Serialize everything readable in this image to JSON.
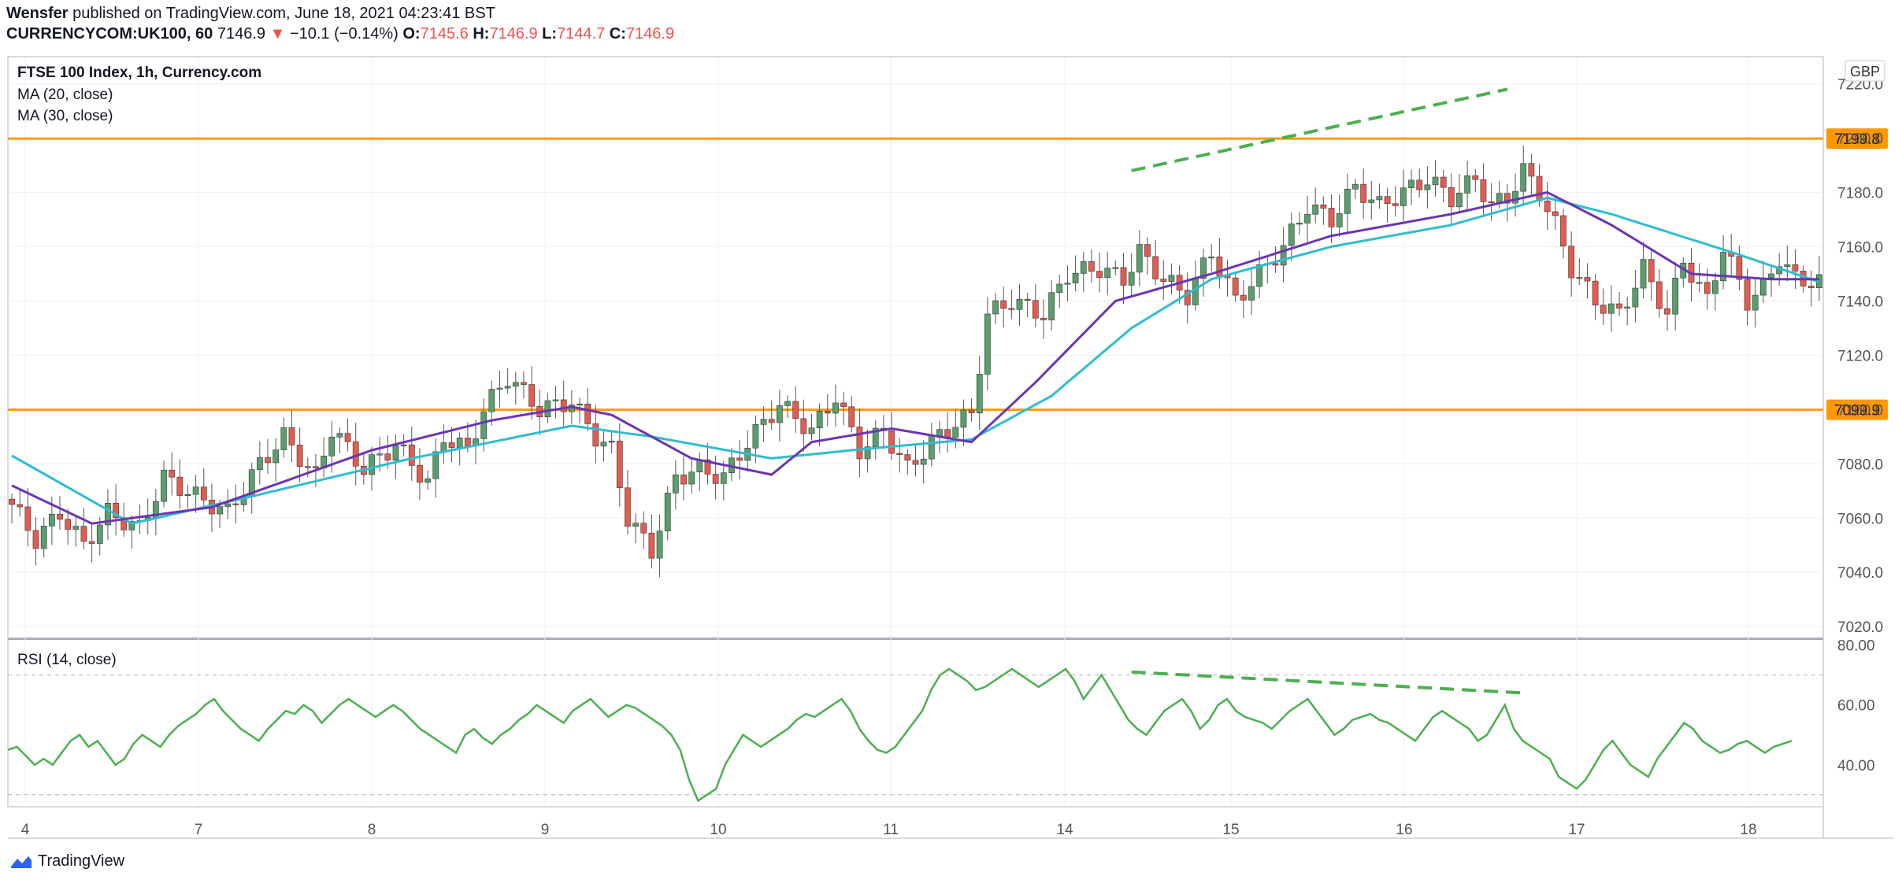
{
  "header": {
    "author": "Wensfer",
    "published_text": "published on TradingView.com, June 18, 2021 04:23:41 BST",
    "symbol": "CURRENCYCOM:UK100, 60",
    "last": "7146.9",
    "change_arrow": "▼",
    "change": "−10.1 (−0.14%)",
    "o_label": "O:",
    "o_val": "7145.6",
    "h_label": "H:",
    "h_val": "7146.9",
    "l_label": "L:",
    "l_val": "7144.7",
    "c_label": "C:",
    "c_val": "7146.9"
  },
  "legend": {
    "title": "FTSE 100 Index, 1h, Currency.com",
    "ma20": "MA (20, close)",
    "ma30": "MA (30, close)",
    "rsi": "RSI (14, close)"
  },
  "footer": {
    "brand": "TradingView"
  },
  "colors": {
    "up": "#5b9e6e",
    "down": "#e05d52",
    "ma20": "#6a35b3",
    "ma30": "#2fbcd0",
    "level": "#ff9800",
    "rsi": "#4caf50",
    "trend": "#4caf50"
  },
  "chart_data": [
    {
      "type": "candlestick",
      "title": "FTSE 100 Index, 1h, Currency.com",
      "currency": "GBP",
      "ylim": [
        7016,
        7230
      ],
      "y_ticks": [
        "7220.0",
        "7200.0",
        "7180.0",
        "7160.0",
        "7140.0",
        "7120.0",
        "7100.0",
        "7080.0",
        "7060.0",
        "7040.0",
        "7020.0"
      ],
      "x_ticks": [
        "4",
        "7",
        "8",
        "9",
        "10",
        "11",
        "14",
        "15",
        "16",
        "17",
        "18"
      ],
      "levels": [
        {
          "label": "7199.8",
          "value": 7199.8
        },
        {
          "label": "7099.9",
          "value": 7099.9
        }
      ],
      "anchors": [
        [
          0,
          7065
        ],
        [
          3,
          7052
        ],
        [
          6,
          7062
        ],
        [
          9,
          7050
        ],
        [
          12,
          7062
        ],
        [
          16,
          7056
        ],
        [
          19,
          7075
        ],
        [
          23,
          7068
        ],
        [
          27,
          7062
        ],
        [
          31,
          7080
        ],
        [
          34,
          7090
        ],
        [
          38,
          7075
        ],
        [
          40,
          7093
        ],
        [
          44,
          7078
        ],
        [
          48,
          7087
        ],
        [
          52,
          7073
        ],
        [
          54,
          7090
        ],
        [
          57,
          7085
        ],
        [
          59,
          7100
        ],
        [
          62,
          7112
        ],
        [
          66,
          7100
        ],
        [
          70,
          7103
        ],
        [
          73,
          7090
        ],
        [
          75,
          7085
        ],
        [
          77,
          7060
        ],
        [
          80,
          7048
        ],
        [
          83,
          7075
        ],
        [
          86,
          7078
        ],
        [
          89,
          7075
        ],
        [
          92,
          7088
        ],
        [
          96,
          7102
        ],
        [
          100,
          7092
        ],
        [
          103,
          7105
        ],
        [
          106,
          7085
        ],
        [
          109,
          7092
        ],
        [
          112,
          7078
        ],
        [
          115,
          7088
        ],
        [
          118,
          7095
        ],
        [
          120,
          7098
        ],
        [
          122,
          7135
        ],
        [
          125,
          7140
        ],
        [
          129,
          7135
        ],
        [
          132,
          7150
        ],
        [
          136,
          7152
        ],
        [
          139,
          7148
        ],
        [
          141,
          7158
        ],
        [
          144,
          7148
        ],
        [
          147,
          7142
        ],
        [
          150,
          7158
        ],
        [
          153,
          7140
        ],
        [
          156,
          7150
        ],
        [
          159,
          7160
        ],
        [
          162,
          7175
        ],
        [
          165,
          7170
        ],
        [
          168,
          7182
        ],
        [
          171,
          7175
        ],
        [
          174,
          7180
        ],
        [
          177,
          7185
        ],
        [
          180,
          7178
        ],
        [
          183,
          7185
        ],
        [
          185,
          7175
        ],
        [
          187,
          7178
        ],
        [
          189,
          7188
        ],
        [
          191,
          7180
        ],
        [
          193,
          7168
        ],
        [
          195,
          7152
        ],
        [
          198,
          7140
        ],
        [
          201,
          7135
        ],
        [
          204,
          7152
        ],
        [
          207,
          7135
        ],
        [
          209,
          7155
        ],
        [
          212,
          7140
        ],
        [
          214,
          7160
        ],
        [
          217,
          7140
        ],
        [
          219,
          7145
        ],
        [
          221,
          7156
        ],
        [
          223,
          7148
        ],
        [
          226,
          7146.9
        ]
      ],
      "ma20_anchors": [
        [
          0,
          7072
        ],
        [
          10,
          7058
        ],
        [
          25,
          7064
        ],
        [
          45,
          7085
        ],
        [
          60,
          7096
        ],
        [
          70,
          7101
        ],
        [
          75,
          7098
        ],
        [
          85,
          7082
        ],
        [
          95,
          7076
        ],
        [
          100,
          7088
        ],
        [
          110,
          7093
        ],
        [
          120,
          7088
        ],
        [
          128,
          7110
        ],
        [
          138,
          7140
        ],
        [
          150,
          7150
        ],
        [
          165,
          7164
        ],
        [
          180,
          7172
        ],
        [
          192,
          7180
        ],
        [
          200,
          7168
        ],
        [
          210,
          7150
        ],
        [
          220,
          7148
        ],
        [
          226,
          7148
        ]
      ],
      "ma30_anchors": [
        [
          0,
          7083
        ],
        [
          15,
          7058
        ],
        [
          30,
          7068
        ],
        [
          50,
          7082
        ],
        [
          70,
          7094
        ],
        [
          80,
          7090
        ],
        [
          95,
          7082
        ],
        [
          105,
          7085
        ],
        [
          120,
          7089
        ],
        [
          130,
          7105
        ],
        [
          140,
          7130
        ],
        [
          150,
          7148
        ],
        [
          165,
          7160
        ],
        [
          180,
          7168
        ],
        [
          192,
          7178
        ],
        [
          200,
          7172
        ],
        [
          215,
          7158
        ],
        [
          226,
          7147
        ]
      ],
      "trendline": {
        "from": [
          140,
          7188
        ],
        "to": [
          187,
          7218
        ]
      }
    },
    {
      "type": "line",
      "title": "RSI (14, close)",
      "ylim": [
        26,
        82
      ],
      "y_ticks": [
        "80.00",
        "60.00",
        "40.00"
      ],
      "bands": [
        70,
        30
      ],
      "values": [
        45,
        46,
        43,
        40,
        42,
        40,
        44,
        48,
        50,
        46,
        48,
        44,
        40,
        42,
        47,
        50,
        48,
        46,
        50,
        53,
        55,
        57,
        60,
        62,
        58,
        55,
        52,
        50,
        48,
        52,
        55,
        58,
        57,
        60,
        58,
        54,
        57,
        60,
        62,
        60,
        58,
        56,
        58,
        60,
        58,
        55,
        52,
        50,
        48,
        46,
        44,
        50,
        52,
        49,
        47,
        50,
        52,
        55,
        57,
        60,
        58,
        56,
        54,
        58,
        60,
        62,
        59,
        56,
        58,
        60,
        59,
        57,
        55,
        53,
        50,
        45,
        35,
        28,
        30,
        32,
        40,
        45,
        50,
        48,
        46,
        48,
        50,
        52,
        55,
        57,
        56,
        58,
        60,
        62,
        58,
        52,
        48,
        45,
        44,
        46,
        50,
        54,
        58,
        65,
        70,
        72,
        70,
        68,
        65,
        66,
        68,
        70,
        72,
        70,
        68,
        66,
        68,
        70,
        72,
        68,
        62,
        66,
        70,
        65,
        60,
        55,
        52,
        50,
        54,
        58,
        60,
        62,
        58,
        52,
        55,
        60,
        62,
        58,
        56,
        55,
        54,
        52,
        55,
        58,
        60,
        62,
        58,
        54,
        50,
        52,
        55,
        56,
        57,
        55,
        54,
        52,
        50,
        48,
        52,
        56,
        58,
        56,
        54,
        52,
        48,
        50,
        55,
        60,
        52,
        48,
        46,
        44,
        42,
        36,
        34,
        32,
        35,
        40,
        45,
        48,
        44,
        40,
        38,
        36,
        42,
        46,
        50,
        54,
        52,
        48,
        46,
        44,
        45,
        47,
        48,
        46,
        44,
        46,
        47,
        48
      ]
    }
  ]
}
